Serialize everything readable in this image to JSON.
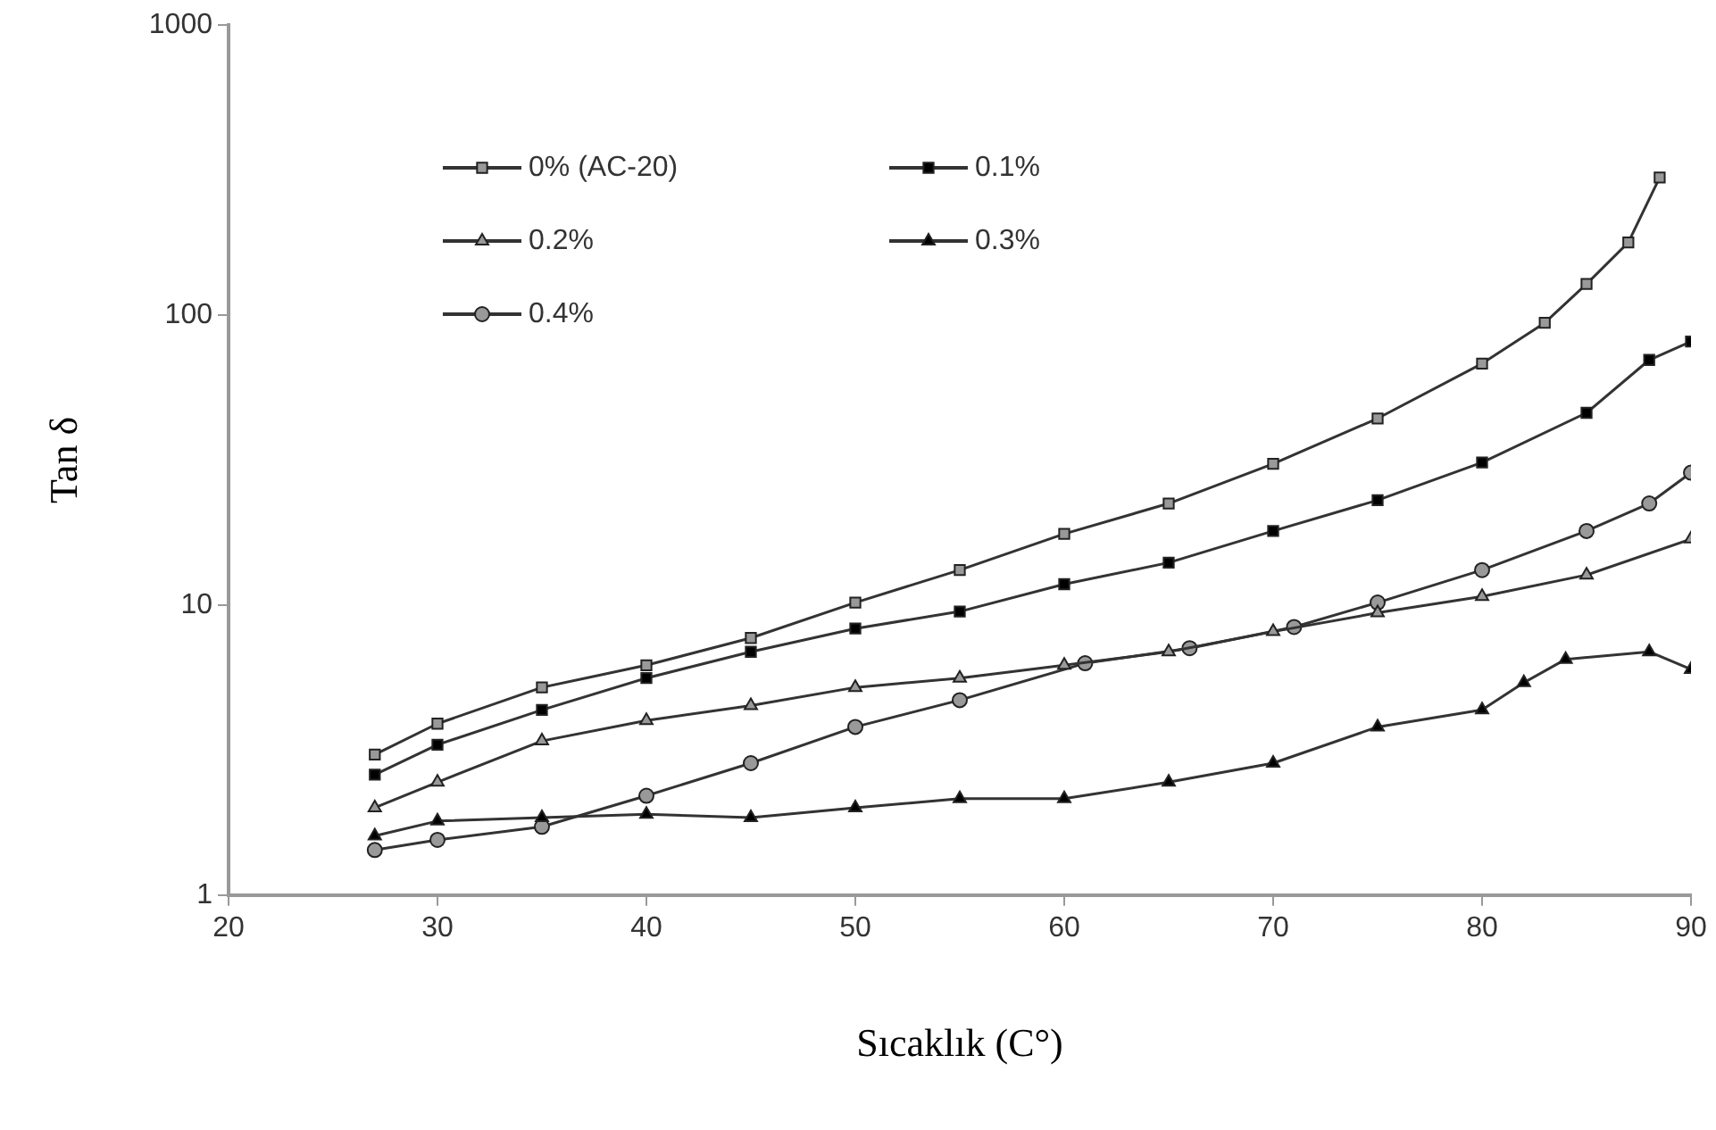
{
  "chart_data": {
    "type": "line",
    "xlabel": "Sıcaklık (C°)",
    "ylabel": "Tan δ",
    "log": "y",
    "grid": false,
    "legend": "top left",
    "xlim": [
      20,
      90
    ],
    "xticks": [
      20,
      30,
      40,
      50,
      60,
      70,
      80,
      90
    ],
    "ylim": [
      1,
      1000
    ],
    "yticks": [
      1,
      10,
      100,
      1000
    ],
    "series": [
      {
        "name": "0% (AC-20)",
        "color": "#999999",
        "marker": "square",
        "x": [
          27,
          30,
          35,
          40,
          45,
          50,
          55,
          60,
          65,
          70,
          75,
          80,
          83,
          85,
          87,
          88.5
        ],
        "values": [
          3.05,
          3.9,
          5.2,
          6.2,
          7.7,
          10.2,
          13.2,
          17.6,
          22.4,
          30.7,
          44,
          68,
          94,
          128,
          178,
          298
        ]
      },
      {
        "name": "0.1%",
        "color": "#000000",
        "marker": "square",
        "x": [
          27,
          30,
          35,
          40,
          45,
          50,
          55,
          60,
          65,
          70,
          75,
          80,
          85,
          88,
          90
        ],
        "values": [
          2.6,
          3.3,
          4.35,
          5.6,
          6.9,
          8.3,
          9.5,
          11.8,
          14,
          18,
          23,
          31,
          46,
          70,
          81
        ]
      },
      {
        "name": "0.2%",
        "color": "#999999",
        "marker": "triangle",
        "x": [
          27,
          30,
          35,
          40,
          45,
          50,
          55,
          60,
          65,
          70,
          75,
          80,
          85,
          90
        ],
        "values": [
          2.0,
          2.45,
          3.4,
          4.0,
          4.5,
          5.2,
          5.6,
          6.2,
          6.9,
          8.1,
          9.4,
          10.7,
          12.7,
          16.9
        ]
      },
      {
        "name": "0.3%",
        "color": "#000000",
        "marker": "triangle",
        "x": [
          27,
          30,
          35,
          40,
          45,
          50,
          55,
          60,
          65,
          70,
          75,
          80,
          82,
          84,
          88,
          90
        ],
        "values": [
          1.6,
          1.8,
          1.85,
          1.9,
          1.85,
          2.0,
          2.15,
          2.15,
          2.45,
          2.85,
          3.8,
          4.35,
          5.4,
          6.5,
          6.9,
          6.0
        ]
      },
      {
        "name": "0.4%",
        "color": "#999999",
        "marker": "circle",
        "x": [
          27,
          30,
          35,
          40,
          45,
          50,
          55,
          61,
          66,
          71,
          75,
          80,
          85,
          88,
          90
        ],
        "values": [
          1.43,
          1.55,
          1.72,
          2.2,
          2.85,
          3.8,
          4.7,
          6.3,
          7.1,
          8.4,
          10.2,
          13.2,
          18,
          22.4,
          28.6
        ]
      }
    ]
  }
}
